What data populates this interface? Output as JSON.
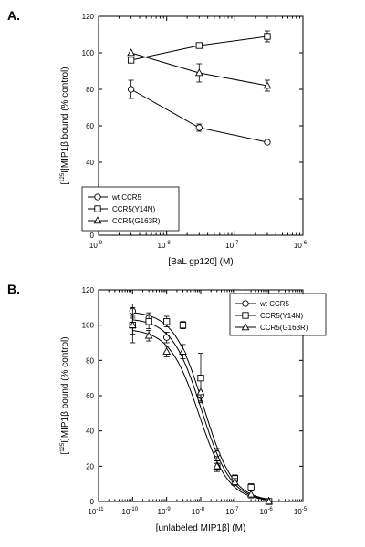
{
  "chart_data": [
    {
      "panel_label": "A.",
      "type": "scatter",
      "title": "",
      "ylabel": "[125I]MIP1β bound (% control)",
      "ylabel_sup": "125",
      "ylabel_main": "]MIP1β bound (% control)",
      "xlabel": "[BaL gp120] (M)",
      "x_scale": "log",
      "xlim": [
        1e-09,
        1e-06
      ],
      "ylim": [
        0,
        120
      ],
      "yticks": [
        0,
        20,
        40,
        60,
        80,
        100,
        120
      ],
      "xtick_exponents": [
        "-9",
        "-8",
        "-7",
        "-6"
      ],
      "fit": "connected",
      "legend_position": "bottom-left",
      "series": [
        {
          "name": "wt CCR5",
          "marker": "circle",
          "x": [
            3e-09,
            3e-08,
            3e-07
          ],
          "y": [
            80,
            59,
            51
          ],
          "err": [
            5,
            2,
            0
          ]
        },
        {
          "name": "CCR5(Y14N)",
          "marker": "square",
          "x": [
            3e-09,
            3e-08,
            3e-07
          ],
          "y": [
            96,
            104,
            109
          ],
          "err": [
            0,
            0,
            3
          ]
        },
        {
          "name": "CCR5(G163R)",
          "marker": "triangle",
          "x": [
            3e-09,
            3e-08,
            3e-07
          ],
          "y": [
            100,
            89,
            82
          ],
          "err": [
            0,
            5,
            3
          ]
        }
      ]
    },
    {
      "panel_label": "B.",
      "type": "scatter",
      "title": "",
      "ylabel": "[125I]MIP1β bound (% control)",
      "ylabel_sup": "125",
      "ylabel_main": "]MIP1β bound (% control)",
      "xlabel": "[unlabeled MIP1β] (M)",
      "x_scale": "log",
      "xlim": [
        1e-11,
        1e-05
      ],
      "ylim": [
        0,
        120
      ],
      "yticks": [
        0,
        20,
        40,
        60,
        80,
        100,
        120
      ],
      "xtick_exponents": [
        "-11",
        "-10",
        "-9",
        "-8",
        "-7",
        "-6",
        "-5"
      ],
      "fit": "sigmoidal",
      "legend_position": "top-right",
      "series": [
        {
          "name": "wt CCR5",
          "marker": "circle",
          "x": [
            1e-10,
            3e-10,
            1e-09,
            3e-09,
            1e-08,
            3e-08,
            1e-07,
            3e-07,
            1e-06
          ],
          "y": [
            108,
            104,
            93,
            100,
            60,
            27,
            13,
            8,
            0
          ],
          "err": [
            4,
            3,
            3,
            2,
            3,
            3,
            2,
            2,
            0
          ],
          "fit": {
            "top": 108,
            "bottom": 0,
            "ec50": 1.2e-08,
            "hill": 1
          }
        },
        {
          "name": "CCR5(Y14N)",
          "marker": "square",
          "x": [
            1e-10,
            3e-10,
            1e-09,
            3e-09,
            1e-08,
            3e-08,
            1e-07,
            3e-07,
            1e-06
          ],
          "y": [
            100,
            102,
            102,
            100,
            70,
            20,
            13,
            8,
            0
          ],
          "err": [
            5,
            4,
            3,
            2,
            14,
            3,
            2,
            2,
            0
          ],
          "fit": {
            "top": 104,
            "bottom": 0,
            "ec50": 1.05e-08,
            "hill": 1
          }
        },
        {
          "name": "CCR5(G163R)",
          "marker": "triangle",
          "x": [
            1e-10,
            3e-10,
            1e-09,
            3e-09,
            1e-08,
            3e-08,
            1e-07,
            3e-07,
            1e-06
          ],
          "y": [
            100,
            94,
            85,
            85,
            62,
            20,
            11,
            4,
            0
          ],
          "err": [
            10,
            3,
            3,
            4,
            3,
            3,
            2,
            2,
            0
          ],
          "fit": {
            "top": 98,
            "bottom": 0,
            "ec50": 9e-09,
            "hill": 1
          }
        }
      ]
    }
  ]
}
